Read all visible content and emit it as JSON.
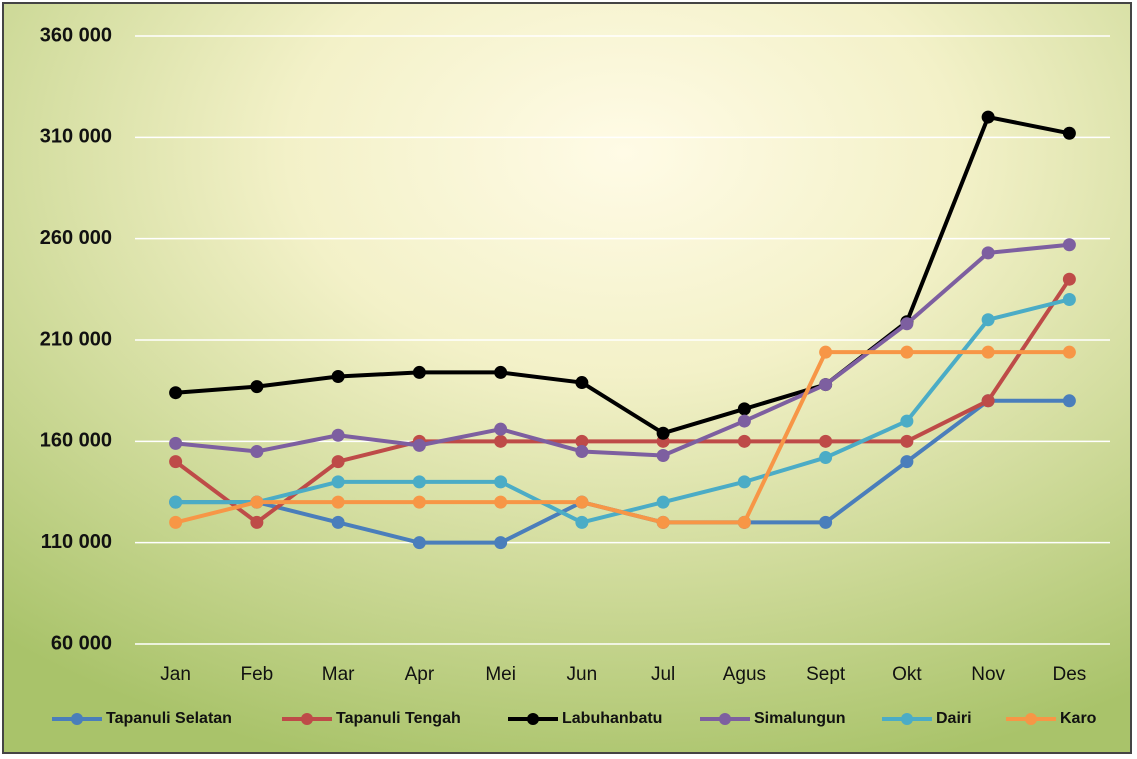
{
  "chart_data": {
    "type": "line",
    "categories": [
      "Jan",
      "Feb",
      "Mar",
      "Apr",
      "Mei",
      "Jun",
      "Jul",
      "Agus",
      "Sept",
      "Okt",
      "Nov",
      "Des"
    ],
    "series": [
      {
        "name": "Tapanuli Selatan",
        "color": "#4a7ebb",
        "values": [
          130000,
          130000,
          120000,
          110000,
          110000,
          130000,
          120000,
          120000,
          120000,
          150000,
          180000,
          180000
        ]
      },
      {
        "name": "Tapanuli Tengah",
        "color": "#be4b48",
        "values": [
          150000,
          120000,
          150000,
          160000,
          160000,
          160000,
          160000,
          160000,
          160000,
          160000,
          180000,
          240000
        ]
      },
      {
        "name": "Labuhanbatu",
        "color": "#000000",
        "values": [
          184000,
          187000,
          192000,
          194000,
          194000,
          189000,
          164000,
          176000,
          188000,
          219000,
          320000,
          312000
        ]
      },
      {
        "name": "Simalungun",
        "color": "#7d5fa0",
        "values": [
          159000,
          155000,
          163000,
          158000,
          166000,
          155000,
          153000,
          170000,
          188000,
          218000,
          253000,
          257000
        ]
      },
      {
        "name": "Dairi",
        "color": "#4bacc6",
        "values": [
          130000,
          130000,
          140000,
          140000,
          140000,
          120000,
          130000,
          140000,
          152000,
          170000,
          220000,
          230000
        ]
      },
      {
        "name": "Karo",
        "color": "#f79646",
        "values": [
          120000,
          130000,
          130000,
          130000,
          130000,
          130000,
          120000,
          120000,
          204000,
          204000,
          204000,
          204000
        ]
      }
    ],
    "ylim": [
      60000,
      360000
    ],
    "yticks": [
      {
        "value": 60000,
        "label": "60 000"
      },
      {
        "value": 110000,
        "label": "110 000"
      },
      {
        "value": 160000,
        "label": "160 000"
      },
      {
        "value": 210000,
        "label": "210 000"
      },
      {
        "value": 260000,
        "label": "260 000"
      },
      {
        "value": 310000,
        "label": "310 000"
      },
      {
        "value": 360000,
        "label": "360 000"
      }
    ],
    "grid": true,
    "legend": "bottom"
  }
}
